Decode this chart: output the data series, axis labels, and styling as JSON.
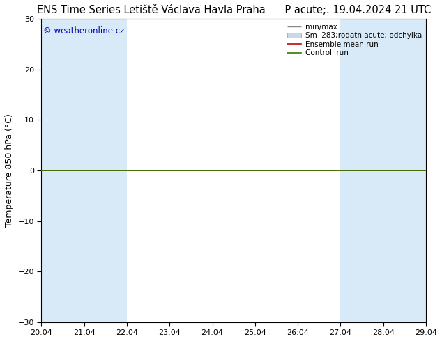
{
  "title_left": "ENS Time Series Letiště Václava Havla Praha",
  "title_right": "P acute;. 19.04.2024 21 UTC",
  "ylabel": "Temperature 850 hPa (°C)",
  "ylim": [
    -30,
    30
  ],
  "yticks": [
    -30,
    -20,
    -10,
    0,
    10,
    20,
    30
  ],
  "xlim": [
    20.04,
    29.04
  ],
  "xtick_labels": [
    "20.04",
    "21.04",
    "22.04",
    "23.04",
    "24.04",
    "25.04",
    "26.04",
    "27.04",
    "28.04",
    "29.04"
  ],
  "xtick_positions": [
    20.04,
    21.04,
    22.04,
    23.04,
    24.04,
    25.04,
    26.04,
    27.04,
    28.04,
    29.04
  ],
  "shaded_bands": [
    [
      20.04,
      21.04
    ],
    [
      21.04,
      22.04
    ],
    [
      27.04,
      28.04
    ],
    [
      28.04,
      29.04
    ]
  ],
  "control_run_y": 0,
  "control_run_color": "#2e7d00",
  "ensemble_mean_color": "#cc0000",
  "band_color": "#d8eaf8",
  "background_color": "#ffffff",
  "watermark_text": "© weatheronline.cz",
  "watermark_color": "#0000bb",
  "title_fontsize": 10.5,
  "axis_label_fontsize": 9,
  "tick_fontsize": 8,
  "legend_fontsize": 7.5
}
